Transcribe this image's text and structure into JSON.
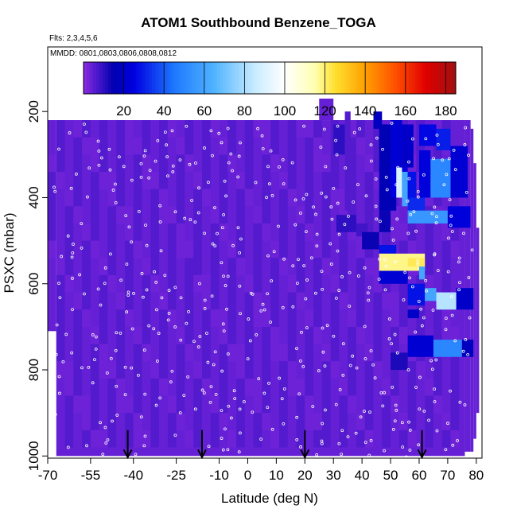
{
  "chart_data": {
    "type": "heatmap",
    "title": "ATOM1 Southbound Benzene_TOGA",
    "subtitle_flights": "Flts: 2,3,4,5,6",
    "subtitle_dates": "MMDD: 0801,0803,0806,0808,0812",
    "xlabel": "Latitude (deg N)",
    "ylabel": "PSXC (mbar)",
    "xlim": [
      -70,
      82
    ],
    "ylim": [
      1005,
      50
    ],
    "x_ticks": [
      -70,
      -55,
      -40,
      -25,
      -10,
      0,
      10,
      20,
      30,
      40,
      50,
      60,
      70,
      80
    ],
    "x_tick_labels": [
      "-70",
      "-55",
      "-40",
      "-25",
      "-10",
      "0",
      "10",
      "20",
      "30",
      "40",
      "50",
      "60",
      "70",
      "80"
    ],
    "y_ticks": [
      200,
      400,
      600,
      800,
      1000
    ],
    "y_tick_labels": [
      "200",
      "400",
      "600",
      "800",
      "1000"
    ],
    "colorbar": {
      "range": [
        0,
        185
      ],
      "ticks": [
        20,
        40,
        60,
        80,
        100,
        120,
        140,
        160,
        180
      ],
      "tick_labels": [
        "20",
        "40",
        "60",
        "80",
        "100",
        "120",
        "140",
        "160",
        "180"
      ],
      "stops": [
        {
          "v": 0,
          "c": "#8a2be2"
        },
        {
          "v": 15,
          "c": "#0000b0"
        },
        {
          "v": 25,
          "c": "#0000e0"
        },
        {
          "v": 45,
          "c": "#1e78ff"
        },
        {
          "v": 65,
          "c": "#50b4ff"
        },
        {
          "v": 85,
          "c": "#c8ebff"
        },
        {
          "v": 100,
          "c": "#ffffff"
        },
        {
          "v": 115,
          "c": "#ffffb0"
        },
        {
          "v": 125,
          "c": "#ffe030"
        },
        {
          "v": 140,
          "c": "#ffa000"
        },
        {
          "v": 155,
          "c": "#ff5000"
        },
        {
          "v": 170,
          "c": "#e00000"
        },
        {
          "v": 185,
          "c": "#a01010"
        }
      ]
    },
    "background_value": 4,
    "coverage": [
      {
        "lat": [
          -70,
          -67
        ],
        "p": [
          220,
          710
        ]
      },
      {
        "lat": [
          -67,
          76
        ],
        "p": [
          220,
          1000
        ]
      },
      {
        "lat": [
          76,
          78
        ],
        "p": [
          220,
          990
        ]
      },
      {
        "lat": [
          78,
          79
        ],
        "p": [
          240,
          990
        ]
      },
      {
        "lat": [
          79,
          80
        ],
        "p": [
          320,
          960
        ]
      },
      {
        "lat": [
          80,
          81
        ],
        "p": [
          470,
          900
        ]
      },
      {
        "lat": [
          25,
          30
        ],
        "p": [
          170,
          220
        ]
      }
    ],
    "cells": [
      {
        "lat": [
          31,
          38
        ],
        "p": [
          440,
          480
        ],
        "v": 10
      },
      {
        "lat": [
          38,
          42
        ],
        "p": [
          460,
          490
        ],
        "v": 8
      },
      {
        "lat": [
          44,
          47
        ],
        "p": [
          200,
          240
        ],
        "v": 18
      },
      {
        "lat": [
          46,
          52
        ],
        "p": [
          230,
          430
        ],
        "v": 16
      },
      {
        "lat": [
          46,
          50
        ],
        "p": [
          430,
          480
        ],
        "v": 14
      },
      {
        "lat": [
          50,
          54
        ],
        "p": [
          220,
          330
        ],
        "v": 22
      },
      {
        "lat": [
          54,
          58
        ],
        "p": [
          230,
          330
        ],
        "v": 20
      },
      {
        "lat": [
          50,
          56
        ],
        "p": [
          330,
          400
        ],
        "v": 25
      },
      {
        "lat": [
          52,
          54
        ],
        "p": [
          330,
          400
        ],
        "v": 90
      },
      {
        "lat": [
          54,
          56
        ],
        "p": [
          340,
          420
        ],
        "v": 60
      },
      {
        "lat": [
          56,
          59
        ],
        "p": [
          340,
          400
        ],
        "v": 28
      },
      {
        "lat": [
          60,
          66
        ],
        "p": [
          230,
          280
        ],
        "v": 26
      },
      {
        "lat": [
          66,
          71
        ],
        "p": [
          240,
          290
        ],
        "v": 30
      },
      {
        "lat": [
          60,
          64
        ],
        "p": [
          290,
          400
        ],
        "v": 24
      },
      {
        "lat": [
          64,
          71
        ],
        "p": [
          310,
          400
        ],
        "v": 50
      },
      {
        "lat": [
          71,
          77
        ],
        "p": [
          280,
          400
        ],
        "v": 22
      },
      {
        "lat": [
          56,
          62
        ],
        "p": [
          400,
          430
        ],
        "v": 32
      },
      {
        "lat": [
          56,
          70
        ],
        "p": [
          430,
          460
        ],
        "v": 55
      },
      {
        "lat": [
          70,
          78
        ],
        "p": [
          420,
          470
        ],
        "v": 24
      },
      {
        "lat": [
          40,
          46
        ],
        "p": [
          480,
          520
        ],
        "v": 14
      },
      {
        "lat": [
          46,
          52
        ],
        "p": [
          510,
          530
        ],
        "v": 28
      },
      {
        "lat": [
          46,
          62
        ],
        "p": [
          530,
          570
        ],
        "v": 118
      },
      {
        "lat": [
          56,
          62
        ],
        "p": [
          540,
          560
        ],
        "v": 122
      },
      {
        "lat": [
          60,
          62
        ],
        "p": [
          560,
          590
        ],
        "v": 60
      },
      {
        "lat": [
          46,
          56
        ],
        "p": [
          570,
          600
        ],
        "v": 22
      },
      {
        "lat": [
          56,
          62
        ],
        "p": [
          600,
          650
        ],
        "v": 28
      },
      {
        "lat": [
          62,
          66
        ],
        "p": [
          610,
          640
        ],
        "v": 60
      },
      {
        "lat": [
          66,
          73
        ],
        "p": [
          620,
          660
        ],
        "v": 82
      },
      {
        "lat": [
          73,
          79
        ],
        "p": [
          610,
          660
        ],
        "v": 20
      },
      {
        "lat": [
          56,
          60
        ],
        "p": [
          660,
          680
        ],
        "v": 20
      },
      {
        "lat": [
          56,
          65
        ],
        "p": [
          720,
          770
        ],
        "v": 22
      },
      {
        "lat": [
          65,
          75
        ],
        "p": [
          730,
          770
        ],
        "v": 50
      },
      {
        "lat": [
          75,
          79
        ],
        "p": [
          730,
          770
        ],
        "v": 18
      },
      {
        "lat": [
          50,
          56
        ],
        "p": [
          760,
          800
        ],
        "v": 12
      },
      {
        "lat": [
          30,
          34
        ],
        "p": [
          230,
          300
        ],
        "v": 10
      },
      {
        "lat": [
          34,
          36
        ],
        "p": [
          200,
          430
        ],
        "v": 6
      }
    ],
    "flight_track_sample_spacing": {
      "lat": 4.6,
      "p": 19
    },
    "bottom_arrows_lat": [
      -42,
      -16,
      20,
      61
    ]
  }
}
